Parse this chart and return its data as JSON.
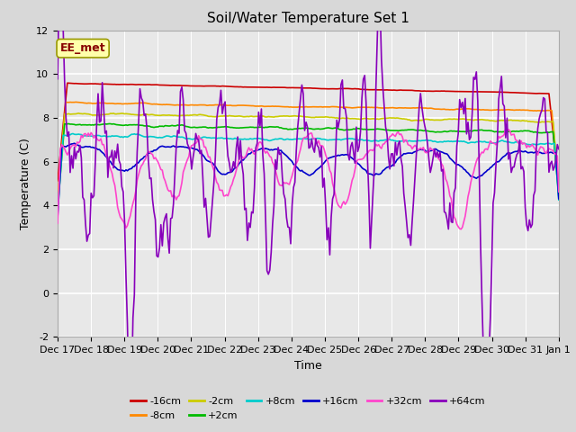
{
  "title": "Soil/Water Temperature Set 1",
  "xlabel": "Time",
  "ylabel": "Temperature (C)",
  "ylim": [
    -2,
    12
  ],
  "yticks": [
    -2,
    0,
    2,
    4,
    6,
    8,
    10,
    12
  ],
  "series": [
    {
      "label": "-16cm",
      "color": "#cc0000"
    },
    {
      "label": "-8cm",
      "color": "#ff8800"
    },
    {
      "label": "-2cm",
      "color": "#cccc00"
    },
    {
      "label": "+2cm",
      "color": "#00bb00"
    },
    {
      "label": "+8cm",
      "color": "#00cccc"
    },
    {
      "label": "+16cm",
      "color": "#0000cc"
    },
    {
      "label": "+32cm",
      "color": "#ff44cc"
    },
    {
      "label": "+64cm",
      "color": "#8800bb"
    }
  ],
  "annotation_label": "EE_met",
  "annotation_color": "#880000",
  "annotation_bg": "#ffffaa",
  "background_color": "#d8d8d8",
  "plot_bg": "#e8e8e8",
  "grid_color": "#ffffff",
  "title_fontsize": 11,
  "axis_fontsize": 9,
  "tick_fontsize": 8,
  "legend_fontsize": 8
}
